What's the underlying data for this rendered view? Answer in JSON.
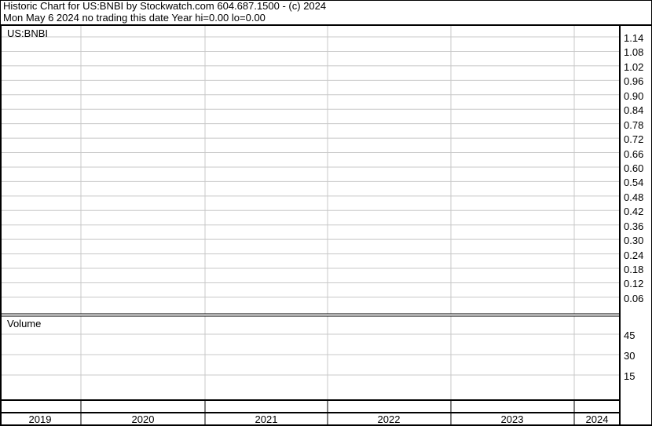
{
  "header": {
    "line1": "Historic Chart for US:BNBI by Stockwatch.com 604.687.1500 - (c) 2024",
    "line2": "Mon May  6 2024   no trading this date  Year hi=0.00  lo=0.00"
  },
  "chart_data": [
    {
      "type": "line",
      "title": "US:BNBI",
      "series": [],
      "ylim": [
        0,
        1.17
      ],
      "y_ticks": [
        "1.14",
        "1.08",
        "1.02",
        "0.96",
        "0.90",
        "0.84",
        "0.78",
        "0.72",
        "0.66",
        "0.60",
        "0.54",
        "0.48",
        "0.42",
        "0.36",
        "0.30",
        "0.24",
        "0.18",
        "0.12",
        "0.06"
      ],
      "grid": true
    },
    {
      "type": "bar",
      "title": "Volume",
      "series": [],
      "y_ticks": [
        "45",
        "30",
        "15"
      ],
      "grid": true,
      "x_tick_labels": [
        "2019",
        "2020",
        "2021",
        "2022",
        "2023",
        "2024"
      ]
    }
  ]
}
